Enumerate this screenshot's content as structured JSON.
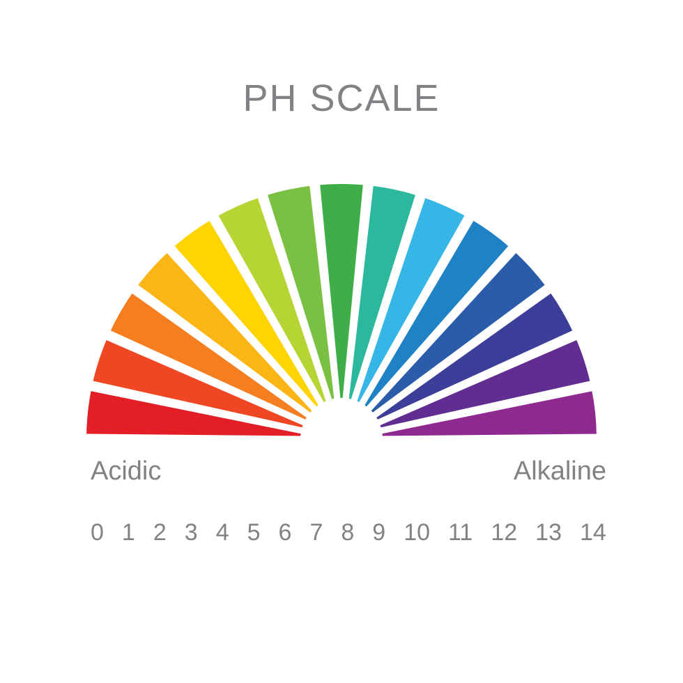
{
  "title": "PH SCALE",
  "left_label": "Acidic",
  "right_label": "Alkaline",
  "type": "semicircle-gauge",
  "background_color": "#ffffff",
  "text_color": "#808285",
  "title_fontsize": 54,
  "label_fontsize": 38,
  "number_fontsize": 34,
  "gauge": {
    "outer_radius": 370,
    "inner_radius": 55,
    "gap_color": "#ffffff",
    "gap_width": 8,
    "segments": [
      {
        "value": 0,
        "color": "#e31e26"
      },
      {
        "value": 1,
        "color": "#ef4623"
      },
      {
        "value": 2,
        "color": "#f57e20"
      },
      {
        "value": 3,
        "color": "#fbb615"
      },
      {
        "value": 4,
        "color": "#ffd400"
      },
      {
        "value": 5,
        "color": "#b6d433"
      },
      {
        "value": 6,
        "color": "#7ac143"
      },
      {
        "value": 7,
        "color": "#3fae49"
      },
      {
        "value": 8,
        "color": "#2bb89c"
      },
      {
        "value": 9,
        "color": "#35b6e6"
      },
      {
        "value": 10,
        "color": "#1f82c4"
      },
      {
        "value": 11,
        "color": "#2a5caa"
      },
      {
        "value": 12,
        "color": "#3c3f99"
      },
      {
        "value": 13,
        "color": "#612d91"
      },
      {
        "value": 14,
        "color": "#8e2a8f"
      }
    ]
  },
  "numbers": [
    "0",
    "1",
    "2",
    "3",
    "4",
    "5",
    "6",
    "7",
    "8",
    "9",
    "10",
    "11",
    "12",
    "13",
    "14"
  ]
}
